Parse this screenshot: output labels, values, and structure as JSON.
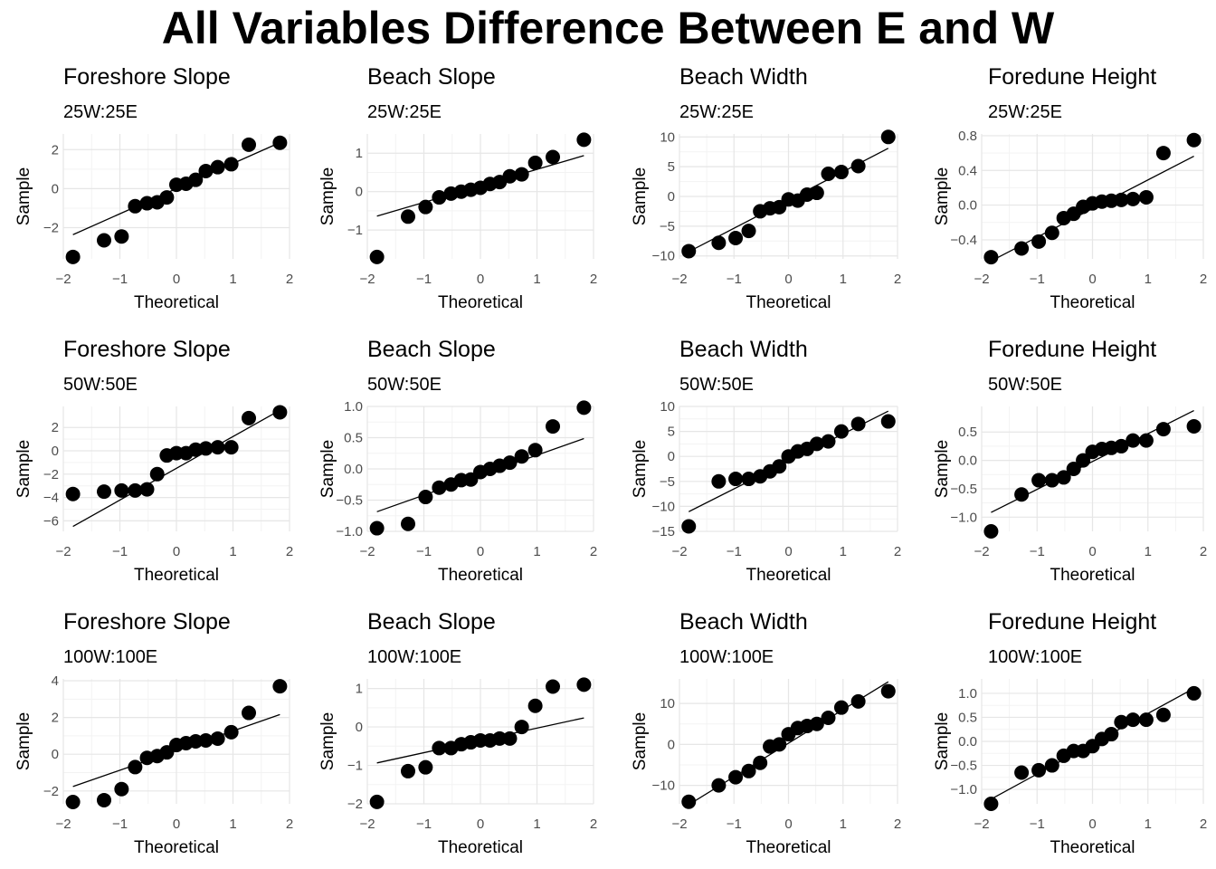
{
  "title": "All Variables Difference Between E and W",
  "chart_data": [
    {
      "type": "scatter",
      "title": "Foreshore Slope",
      "subtitle": "25W:25E",
      "xlabel": "Theoretical",
      "ylabel": "Sample",
      "xlim": [
        -2,
        2
      ],
      "ylim": [
        -3.6,
        2.8
      ],
      "xticks": [
        -2,
        -1,
        0,
        1,
        2
      ],
      "yticks": [
        -2,
        0,
        2
      ],
      "x": [
        -1.83,
        -1.28,
        -0.97,
        -0.73,
        -0.52,
        -0.34,
        -0.17,
        0,
        0.17,
        0.34,
        0.52,
        0.73,
        0.97,
        1.28,
        1.83
      ],
      "values": [
        -3.5,
        -2.65,
        -2.45,
        -0.9,
        -0.75,
        -0.7,
        -0.45,
        0.2,
        0.25,
        0.45,
        0.9,
        1.1,
        1.25,
        2.25,
        2.35
      ],
      "fit_line": {
        "slope": 1.29,
        "intercept": 0.0
      }
    },
    {
      "type": "scatter",
      "title": "Beach Slope",
      "subtitle": "25W:25E",
      "xlabel": "Theoretical",
      "ylabel": "Sample",
      "xlim": [
        -2,
        2
      ],
      "ylim": [
        -1.75,
        1.5
      ],
      "xticks": [
        -2,
        -1,
        0,
        1,
        2
      ],
      "yticks": [
        -1,
        0,
        1
      ],
      "x": [
        -1.83,
        -1.28,
        -0.97,
        -0.73,
        -0.52,
        -0.34,
        -0.17,
        0,
        0.17,
        0.34,
        0.52,
        0.73,
        0.97,
        1.28,
        1.83
      ],
      "values": [
        -1.7,
        -0.65,
        -0.4,
        -0.15,
        -0.05,
        0,
        0.05,
        0.1,
        0.2,
        0.25,
        0.4,
        0.45,
        0.75,
        0.9,
        1.35
      ],
      "fit_line": {
        "slope": 0.43,
        "intercept": 0.15
      }
    },
    {
      "type": "scatter",
      "title": "Beach Width",
      "subtitle": "25W:25E",
      "xlabel": "Theoretical",
      "ylabel": "Sample",
      "xlim": [
        -2,
        2
      ],
      "ylim": [
        -10.5,
        10.5
      ],
      "xticks": [
        -2,
        -1,
        0,
        1,
        2
      ],
      "yticks": [
        -10,
        -5,
        0,
        5,
        10
      ],
      "x": [
        -1.83,
        -1.28,
        -0.97,
        -0.73,
        -0.52,
        -0.34,
        -0.17,
        0,
        0.17,
        0.34,
        0.52,
        0.73,
        0.97,
        1.28,
        1.83
      ],
      "values": [
        -9.2,
        -7.8,
        -7,
        -5.8,
        -2.5,
        -2,
        -1.8,
        -0.5,
        -0.7,
        0.3,
        0.6,
        3.8,
        4.1,
        5.1,
        10
      ],
      "fit_line": {
        "slope": 4.75,
        "intercept": -0.6
      }
    },
    {
      "type": "scatter",
      "title": "Foredune Height",
      "subtitle": "25W:25E",
      "xlabel": "Theoretical",
      "ylabel": "Sample",
      "xlim": [
        -2,
        2
      ],
      "ylim": [
        -0.62,
        0.82
      ],
      "xticks": [
        -2,
        -1,
        0,
        1,
        2
      ],
      "yticks": [
        -0.4,
        0,
        0.4,
        0.8
      ],
      "ytick_labels": [
        "-0.4",
        "0.0",
        "0.4",
        "0.8"
      ],
      "x": [
        -1.83,
        -1.28,
        -0.97,
        -0.73,
        -0.52,
        -0.34,
        -0.17,
        0,
        0.17,
        0.34,
        0.52,
        0.73,
        0.97,
        1.28,
        1.83
      ],
      "values": [
        -0.6,
        -0.5,
        -0.42,
        -0.32,
        -0.15,
        -0.1,
        -0.02,
        0.02,
        0.04,
        0.05,
        0.06,
        0.07,
        0.09,
        0.6,
        0.75
      ],
      "fit_line": {
        "slope": 0.33,
        "intercept": -0.04
      }
    },
    {
      "type": "scatter",
      "title": "Foreshore Slope",
      "subtitle": "50W:50E",
      "xlabel": "Theoretical",
      "ylabel": "Sample",
      "xlim": [
        -2,
        2
      ],
      "ylim": [
        -6.9,
        3.8
      ],
      "xticks": [
        -2,
        -1,
        0,
        1,
        2
      ],
      "yticks": [
        -6,
        -4,
        -2,
        0,
        2
      ],
      "x": [
        -1.83,
        -1.28,
        -0.97,
        -0.73,
        -0.52,
        -0.34,
        -0.17,
        0,
        0.17,
        0.34,
        0.52,
        0.73,
        0.97,
        1.28,
        1.83
      ],
      "values": [
        -3.7,
        -3.5,
        -3.4,
        -3.4,
        -3.3,
        -2,
        -0.4,
        -0.2,
        -0.2,
        0.1,
        0.2,
        0.3,
        0.3,
        2.8,
        3.3
      ],
      "fit_line": {
        "slope": 2.72,
        "intercept": -1.5
      }
    },
    {
      "type": "scatter",
      "title": "Beach Slope",
      "subtitle": "50W:50E",
      "xlabel": "Theoretical",
      "ylabel": "Sample",
      "xlim": [
        -2,
        2
      ],
      "ylim": [
        -1.0,
        1.0
      ],
      "xticks": [
        -2,
        -1,
        0,
        1,
        2
      ],
      "yticks": [
        -1,
        -0.5,
        0,
        0.5,
        1
      ],
      "ytick_labels": [
        "-1.0",
        "-0.5",
        "0.0",
        "0.5",
        "1.0"
      ],
      "x": [
        -1.83,
        -1.28,
        -0.97,
        -0.73,
        -0.52,
        -0.34,
        -0.17,
        0,
        0.17,
        0.34,
        0.52,
        0.73,
        0.97,
        1.28,
        1.83
      ],
      "values": [
        -0.95,
        -0.88,
        -0.45,
        -0.3,
        -0.25,
        -0.18,
        -0.17,
        -0.05,
        0,
        0.05,
        0.1,
        0.2,
        0.3,
        0.68,
        0.98
      ],
      "fit_line": {
        "slope": 0.32,
        "intercept": -0.1
      }
    },
    {
      "type": "scatter",
      "title": "Beach Width",
      "subtitle": "50W:50E",
      "xlabel": "Theoretical",
      "ylabel": "Sample",
      "xlim": [
        -2,
        2
      ],
      "ylim": [
        -15,
        10
      ],
      "xticks": [
        -2,
        -1,
        0,
        1,
        2
      ],
      "yticks": [
        -15,
        -10,
        -5,
        0,
        5,
        10
      ],
      "x": [
        -1.83,
        -1.28,
        -0.97,
        -0.73,
        -0.52,
        -0.34,
        -0.17,
        0,
        0.17,
        0.34,
        0.52,
        0.73,
        0.97,
        1.28,
        1.83
      ],
      "values": [
        -14,
        -5,
        -4.5,
        -4.5,
        -4,
        -3,
        -2,
        0,
        1,
        1.5,
        2.5,
        3,
        5,
        6.5,
        7
      ],
      "fit_line": {
        "slope": 5.5,
        "intercept": -1.0
      }
    },
    {
      "type": "scatter",
      "title": "Foredune Height",
      "subtitle": "50W:50E",
      "xlabel": "Theoretical",
      "ylabel": "Sample",
      "xlim": [
        -2,
        2
      ],
      "ylim": [
        -1.25,
        0.95
      ],
      "xticks": [
        -2,
        -1,
        0,
        1,
        2
      ],
      "yticks": [
        -1,
        -0.5,
        0,
        0.5
      ],
      "ytick_labels": [
        "-1.0",
        "-0.5",
        "0.0",
        "0.5"
      ],
      "x": [
        -1.83,
        -1.28,
        -0.97,
        -0.73,
        -0.52,
        -0.34,
        -0.17,
        0,
        0.17,
        0.34,
        0.52,
        0.73,
        0.97,
        1.28,
        1.83
      ],
      "values": [
        -1.25,
        -0.6,
        -0.35,
        -0.35,
        -0.3,
        -0.15,
        0,
        0.15,
        0.2,
        0.22,
        0.25,
        0.35,
        0.35,
        0.55,
        0.6
      ],
      "fit_line": {
        "slope": 0.49,
        "intercept": -0.02
      }
    },
    {
      "type": "scatter",
      "title": "Foreshore Slope",
      "subtitle": "100W:100E",
      "xlabel": "Theoretical",
      "ylabel": "Sample",
      "xlim": [
        -2,
        2
      ],
      "ylim": [
        -2.7,
        4.1
      ],
      "xticks": [
        -2,
        -1,
        0,
        1,
        2
      ],
      "yticks": [
        -2,
        0,
        2,
        4
      ],
      "x": [
        -1.83,
        -1.28,
        -0.97,
        -0.73,
        -0.52,
        -0.34,
        -0.17,
        0,
        0.17,
        0.34,
        0.52,
        0.73,
        0.97,
        1.28,
        1.83
      ],
      "values": [
        -2.6,
        -2.5,
        -1.9,
        -0.7,
        -0.2,
        -0.1,
        0.1,
        0.5,
        0.6,
        0.7,
        0.75,
        0.85,
        1.2,
        2.25,
        3.7
      ],
      "fit_line": {
        "slope": 1.07,
        "intercept": 0.2
      }
    },
    {
      "type": "scatter",
      "title": "Beach Slope",
      "subtitle": "100W:100E",
      "xlabel": "Theoretical",
      "ylabel": "Sample",
      "xlim": [
        -2,
        2
      ],
      "ylim": [
        -2.0,
        1.25
      ],
      "xticks": [
        -2,
        -1,
        0,
        1,
        2
      ],
      "yticks": [
        -2,
        -1,
        0,
        1
      ],
      "x": [
        -1.83,
        -1.28,
        -0.97,
        -0.73,
        -0.52,
        -0.34,
        -0.17,
        0,
        0.17,
        0.34,
        0.52,
        0.73,
        0.97,
        1.28,
        1.83
      ],
      "values": [
        -1.95,
        -1.15,
        -1.05,
        -0.55,
        -0.55,
        -0.45,
        -0.4,
        -0.35,
        -0.35,
        -0.3,
        -0.3,
        0,
        0.55,
        1.05,
        1.1
      ],
      "fit_line": {
        "slope": 0.32,
        "intercept": -0.35
      }
    },
    {
      "type": "scatter",
      "title": "Beach Width",
      "subtitle": "100W:100E",
      "xlabel": "Theoretical",
      "ylabel": "Sample",
      "xlim": [
        -2,
        2
      ],
      "ylim": [
        -14.5,
        16
      ],
      "xticks": [
        -2,
        -1,
        0,
        1,
        2
      ],
      "yticks": [
        -10,
        0,
        10
      ],
      "x": [
        -1.83,
        -1.28,
        -0.97,
        -0.73,
        -0.52,
        -0.34,
        -0.17,
        0,
        0.17,
        0.34,
        0.52,
        0.73,
        0.97,
        1.28,
        1.83
      ],
      "values": [
        -14,
        -10,
        -8,
        -6.5,
        -4.5,
        -0.5,
        0,
        2.5,
        4,
        4.5,
        5,
        6.5,
        9,
        10.5,
        13
      ],
      "fit_line": {
        "slope": 8.2,
        "intercept": 0.3
      }
    },
    {
      "type": "scatter",
      "title": "Foredune Height",
      "subtitle": "100W:100E",
      "xlabel": "Theoretical",
      "ylabel": "Sample",
      "xlim": [
        -2,
        2
      ],
      "ylim": [
        -1.3,
        1.3
      ],
      "xticks": [
        -2,
        -1,
        0,
        1,
        2
      ],
      "yticks": [
        -1,
        -0.5,
        0,
        0.5,
        1
      ],
      "ytick_labels": [
        "-1.0",
        "-0.5",
        "0.0",
        "0.5",
        "1.0"
      ],
      "x": [
        -1.83,
        -1.28,
        -0.97,
        -0.73,
        -0.52,
        -0.34,
        -0.17,
        0,
        0.17,
        0.34,
        0.52,
        0.73,
        0.97,
        1.28,
        1.83
      ],
      "values": [
        -1.3,
        -0.65,
        -0.6,
        -0.5,
        -0.3,
        -0.2,
        -0.2,
        -0.1,
        0.05,
        0.15,
        0.4,
        0.45,
        0.45,
        0.55,
        1.0
      ],
      "fit_line": {
        "slope": 0.63,
        "intercept": -0.05
      }
    }
  ]
}
